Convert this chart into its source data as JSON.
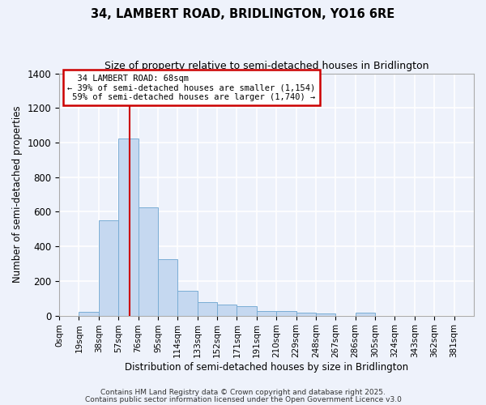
{
  "title": "34, LAMBERT ROAD, BRIDLINGTON, YO16 6RE",
  "subtitle": "Size of property relative to semi-detached houses in Bridlington",
  "xlabel": "Distribution of semi-detached houses by size in Bridlington",
  "ylabel": "Number of semi-detached properties",
  "bar_labels": [
    "0sqm",
    "19sqm",
    "38sqm",
    "57sqm",
    "76sqm",
    "95sqm",
    "114sqm",
    "133sqm",
    "152sqm",
    "171sqm",
    "191sqm",
    "210sqm",
    "229sqm",
    "248sqm",
    "267sqm",
    "286sqm",
    "305sqm",
    "324sqm",
    "343sqm",
    "362sqm",
    "381sqm"
  ],
  "bar_values": [
    0,
    20,
    550,
    1025,
    625,
    325,
    145,
    80,
    65,
    52,
    25,
    25,
    15,
    12,
    0,
    15,
    0,
    0,
    0,
    0,
    0
  ],
  "bar_color": "#c5d8f0",
  "bar_edge_color": "#7aadd4",
  "ylim": [
    0,
    1400
  ],
  "yticks": [
    0,
    200,
    400,
    600,
    800,
    1000,
    1200,
    1400
  ],
  "property_size": 68,
  "property_label": "34 LAMBERT ROAD: 68sqm",
  "pct_smaller": 39,
  "pct_larger": 59,
  "count_smaller": 1154,
  "count_larger": 1740,
  "vline_color": "#cc0000",
  "annotation_box_color": "#cc0000",
  "background_color": "#eef2fb",
  "grid_color": "#ffffff",
  "footer_line1": "Contains HM Land Registry data © Crown copyright and database right 2025.",
  "footer_line2": "Contains public sector information licensed under the Open Government Licence v3.0",
  "bin_width": 19
}
